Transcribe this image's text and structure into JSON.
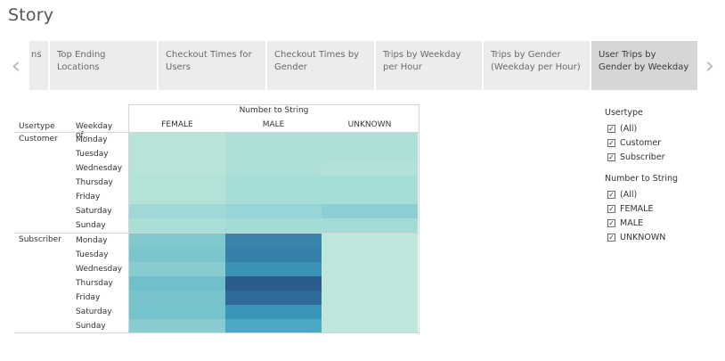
{
  "story": {
    "title": "Story"
  },
  "navigator": {
    "prev_icon": "chevron-left-icon",
    "next_icon": "chevron-right-icon",
    "tabs": [
      {
        "label": "ns",
        "active": false
      },
      {
        "label": "Top Ending Locations",
        "active": false
      },
      {
        "label": "Checkout Times for Users",
        "active": false
      },
      {
        "label": "Checkout Times by Gender",
        "active": false
      },
      {
        "label": "Trips by Weekday per Hour",
        "active": false
      },
      {
        "label": "Trips by Gender (Weekday per Hour)",
        "active": false
      },
      {
        "label": "User Trips by Gender by Weekday",
        "active": true
      }
    ]
  },
  "crosstab": {
    "column_field": "Number to String",
    "row_headers": [
      "Usertype",
      "Weekday of.."
    ],
    "columns": [
      "FEMALE",
      "MALE",
      "UNKNOWN"
    ],
    "groups": [
      {
        "usertype": "Customer",
        "days": [
          "Monday",
          "Tuesday",
          "Wednesday",
          "Thursday",
          "Friday",
          "Saturday",
          "Sunday"
        ],
        "colors": [
          [
            "#b7e3d9",
            "#ade0d8",
            "#ade0d8"
          ],
          [
            "#b7e3d9",
            "#ade0d8",
            "#ade0d8"
          ],
          [
            "#b7e3d9",
            "#ade0d8",
            "#b1e1d8"
          ],
          [
            "#b3e2d8",
            "#a7ddd7",
            "#a7ddd7"
          ],
          [
            "#b3e2d8",
            "#a7ddd7",
            "#a7ddd7"
          ],
          [
            "#9fd8d6",
            "#98d5d6",
            "#8acfd4"
          ],
          [
            "#a9dfd7",
            "#a3dbd7",
            "#a3dbd7"
          ]
        ]
      },
      {
        "usertype": "Subscriber",
        "days": [
          "Monday",
          "Tuesday",
          "Wednesday",
          "Thursday",
          "Friday",
          "Saturday",
          "Sunday"
        ],
        "colors": [
          [
            "#7fc8cc",
            "#3a84ac",
            "#bfe6dc"
          ],
          [
            "#7ac6cc",
            "#3680aa",
            "#bfe6dc"
          ],
          [
            "#88cccf",
            "#3a92b4",
            "#bfe6dc"
          ],
          [
            "#6fc0ca",
            "#2c5c8c",
            "#bfe6dc"
          ],
          [
            "#78c4cc",
            "#306a98",
            "#bfe6dc"
          ],
          [
            "#75c3cb",
            "#3a96b8",
            "#bfe6dc"
          ],
          [
            "#88cccf",
            "#4aa8c4",
            "#bfe6dc"
          ]
        ]
      }
    ]
  },
  "filters": [
    {
      "title": "Usertype",
      "options": [
        {
          "label": "(All)",
          "checked": true
        },
        {
          "label": "Customer",
          "checked": true
        },
        {
          "label": "Subscriber",
          "checked": true
        }
      ]
    },
    {
      "title": "Number to String",
      "options": [
        {
          "label": "(All)",
          "checked": true
        },
        {
          "label": "FEMALE",
          "checked": true
        },
        {
          "label": "MALE",
          "checked": true
        },
        {
          "label": "UNKNOWN",
          "checked": true
        }
      ]
    }
  ]
}
